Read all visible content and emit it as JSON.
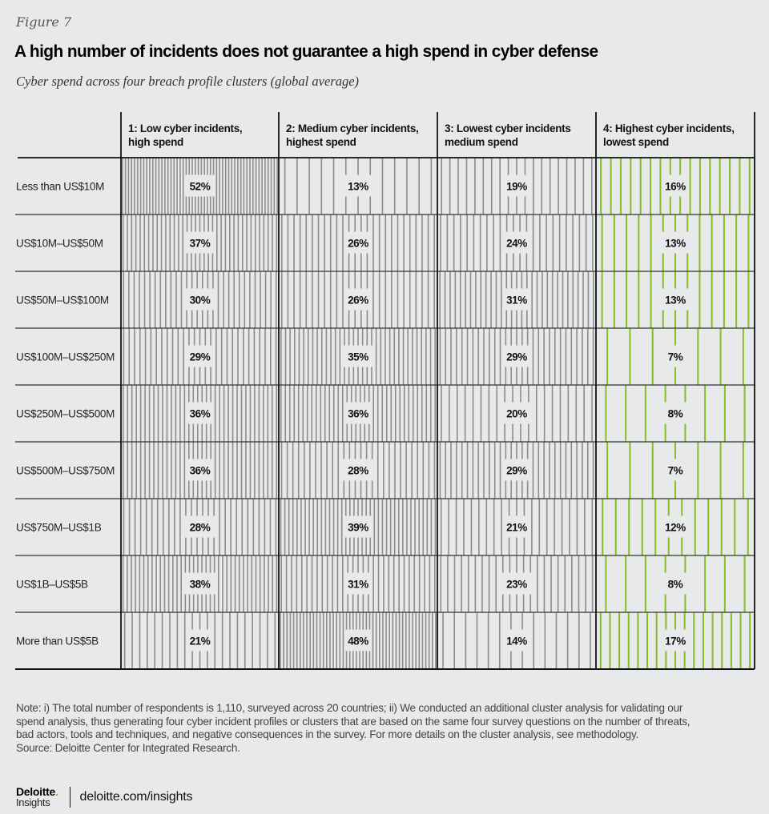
{
  "figure_label": "Figure 7",
  "title": "A high number of incidents does not guarantee a high spend in cyber defense",
  "subtitle": "Cyber spend across four breach profile clusters (global average)",
  "colors": {
    "background": "#e8e9eb",
    "line_gray": "#8c8c8c",
    "line_green": "#86bc25",
    "grid": "#111111"
  },
  "chart_data": {
    "type": "table",
    "title": "A high number of incidents does not guarantee a high spend in cyber defense",
    "subtitle": "Cyber spend across four breach profile clusters (global average)",
    "encoding": "vertical line density proportional to percentage",
    "columns": [
      {
        "label_line1": "1: Low cyber incidents,",
        "label_line2": "high spend",
        "color": "gray"
      },
      {
        "label_line1": "2: Medium cyber incidents,",
        "label_line2": "highest spend",
        "color": "gray"
      },
      {
        "label_line1": "3: Lowest cyber incidents",
        "label_line2": "medium spend",
        "color": "gray"
      },
      {
        "label_line1": "4: Highest cyber incidents,",
        "label_line2": "lowest spend",
        "color": "green"
      }
    ],
    "rows": [
      {
        "label": "Less than US$10M",
        "values": [
          52,
          13,
          19,
          16
        ]
      },
      {
        "label": "US$10M–US$50M",
        "values": [
          37,
          26,
          24,
          13
        ]
      },
      {
        "label": "US$50M–US$100M",
        "values": [
          30,
          26,
          31,
          13
        ]
      },
      {
        "label": "US$100M–US$250M",
        "values": [
          29,
          35,
          29,
          7
        ]
      },
      {
        "label": "US$250M–US$500M",
        "values": [
          36,
          36,
          20,
          8
        ]
      },
      {
        "label": "US$500M–US$750M",
        "values": [
          36,
          28,
          29,
          7
        ]
      },
      {
        "label": "US$750M–US$1B",
        "values": [
          28,
          39,
          21,
          12
        ]
      },
      {
        "label": "US$1B–US$5B",
        "values": [
          38,
          31,
          23,
          8
        ]
      },
      {
        "label": "More than US$5B",
        "values": [
          21,
          48,
          14,
          17
        ]
      }
    ],
    "unit": "%"
  },
  "note": {
    "line1": "Note: i) The total number of respondents is 1,110, surveyed across 20 countries; ii) We conducted an additional cluster analysis for validating our",
    "line2": "spend analysis, thus generating four cyber incident profiles or clusters that are based on the same four survey questions on the number of threats,",
    "line3": "bad actors, tools and techniques, and negative consequences in the survey. For more details on the cluster analysis, see methodology.",
    "source": "Source: Deloitte Center for Integrated Research."
  },
  "footer": {
    "brand": "Deloitte",
    "brand_dot": ".",
    "brand_sub": "Insights",
    "url": "deloitte.com/insights"
  }
}
